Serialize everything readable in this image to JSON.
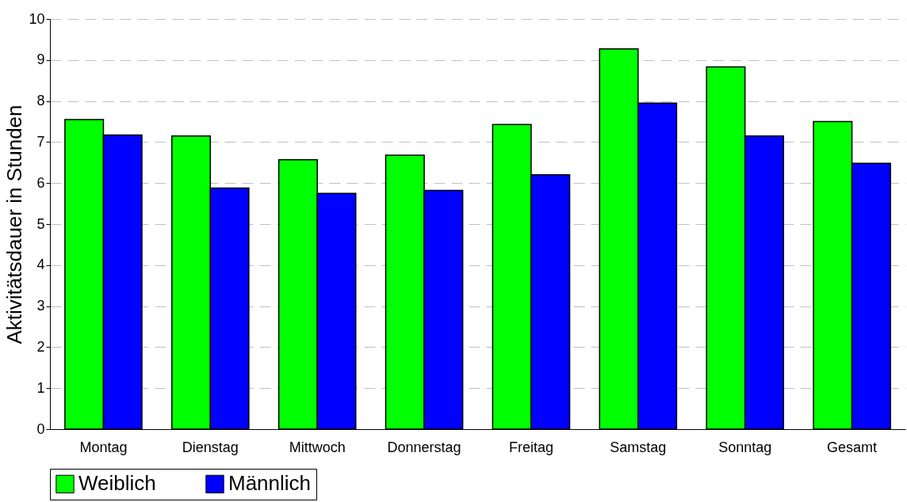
{
  "chart_data": {
    "type": "bar",
    "ylabel": "Aktivitätsdauer in Stunden",
    "categories": [
      "Montag",
      "Dienstag",
      "Mittwoch",
      "Donnerstag",
      "Freitag",
      "Samstag",
      "Sonntag",
      "Gesamt"
    ],
    "series": [
      {
        "name": "Weiblich",
        "color": "#00ff00",
        "values": [
          7.55,
          7.15,
          6.57,
          6.68,
          7.43,
          9.27,
          8.83,
          7.5
        ]
      },
      {
        "name": "Männlich",
        "color": "#0000ff",
        "values": [
          7.17,
          5.88,
          5.75,
          5.82,
          6.2,
          7.95,
          7.15,
          6.48
        ]
      }
    ],
    "ylim": [
      0,
      10
    ],
    "yticks": [
      0,
      1,
      2,
      3,
      4,
      5,
      6,
      7,
      8,
      9,
      10
    ],
    "grid": "y",
    "legend": "bottom"
  }
}
